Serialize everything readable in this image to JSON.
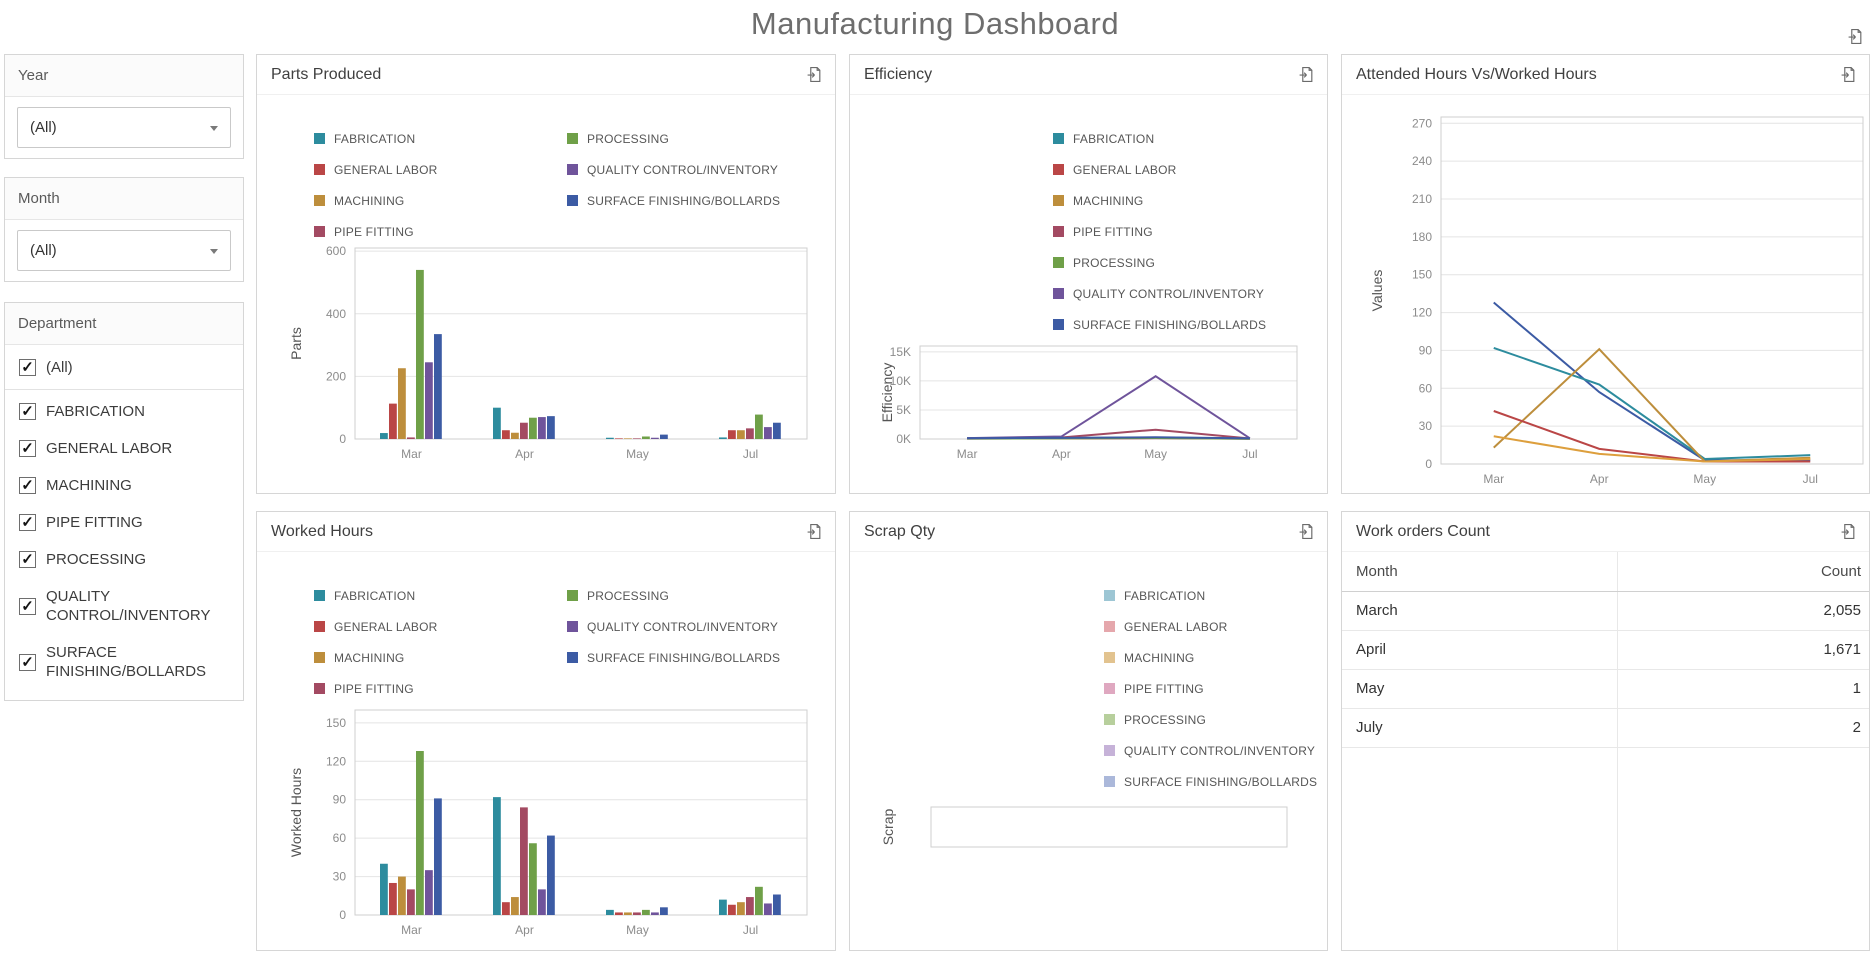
{
  "page": {
    "title": "Manufacturing Dashboard"
  },
  "icons": {
    "page_export": "export-icon",
    "dropdown_chevron": "chevron-down-icon",
    "checkbox_check": "checkmark-icon"
  },
  "glyphs": {
    "checkmark": "✓"
  },
  "filters": {
    "year_label": "Year",
    "year_value": "(All)",
    "month_label": "Month",
    "month_value": "(All)",
    "department_label": "Department",
    "departments": [
      {
        "label": "(All)",
        "checked": true
      },
      {
        "label": "FABRICATION",
        "checked": true
      },
      {
        "label": "GENERAL LABOR",
        "checked": true
      },
      {
        "label": "MACHINING",
        "checked": true
      },
      {
        "label": "PIPE FITTING",
        "checked": true
      },
      {
        "label": "PROCESSING",
        "checked": true
      },
      {
        "label": "QUALITY CONTROL/INVENTORY",
        "checked": true
      },
      {
        "label": "SURFACE FINISHING/BOLLARDS",
        "checked": true
      }
    ]
  },
  "cards": {
    "parts": "Parts Produced",
    "efficiency": "Efficiency",
    "attended": "Attended Hours Vs/Worked Hours",
    "worked": "Worked Hours",
    "scrap": "Scrap Qty",
    "workorders": "Work orders Count"
  },
  "chart_data": [
    {
      "id": "parts",
      "type": "bar",
      "title": "Parts Produced",
      "xlabel": "",
      "ylabel": "Parts",
      "ylim": [
        0,
        610
      ],
      "yticks": [
        {
          "v": 0,
          "label": "0"
        },
        {
          "v": 200,
          "label": "200"
        },
        {
          "v": 400,
          "label": "400"
        },
        {
          "v": 600,
          "label": "600"
        }
      ],
      "categories": [
        "Mar",
        "Apr",
        "May",
        "Jul"
      ],
      "legend_position": "top",
      "series": [
        {
          "name": "FABRICATION",
          "color": "#2D8C9E",
          "values": [
            19,
            100,
            4,
            5
          ]
        },
        {
          "name": "GENERAL LABOR",
          "color": "#BA4646",
          "values": [
            113,
            28,
            2,
            28
          ]
        },
        {
          "name": "MACHINING",
          "color": "#BD8E3C",
          "values": [
            226,
            20,
            2,
            28
          ]
        },
        {
          "name": "PIPE FITTING",
          "color": "#A34A62",
          "values": [
            5,
            52,
            2,
            34
          ]
        },
        {
          "name": "PROCESSING",
          "color": "#6FA048",
          "values": [
            540,
            68,
            8,
            78
          ]
        },
        {
          "name": "QUALITY CONTROL/INVENTORY",
          "color": "#6F549B",
          "values": [
            245,
            70,
            4,
            38
          ]
        },
        {
          "name": "SURFACE FINISHING/BOLLARDS",
          "color": "#3C5BA4",
          "values": [
            335,
            73,
            14,
            52
          ]
        }
      ]
    },
    {
      "id": "efficiency",
      "type": "line",
      "title": "Efficiency",
      "xlabel": "",
      "ylabel": "Efficiency",
      "ylim": [
        0,
        16000
      ],
      "yticks": [
        {
          "v": 0,
          "label": "0K"
        },
        {
          "v": 5000,
          "label": "5K"
        },
        {
          "v": 10000,
          "label": "10K"
        },
        {
          "v": 15000,
          "label": "15K"
        }
      ],
      "categories": [
        "Mar",
        "Apr",
        "May",
        "Jul"
      ],
      "legend_position": "top",
      "series": [
        {
          "name": "FABRICATION",
          "color": "#2D8C9E",
          "values": [
            120,
            180,
            250,
            80
          ]
        },
        {
          "name": "GENERAL LABOR",
          "color": "#BA4646",
          "values": [
            60,
            90,
            140,
            40
          ]
        },
        {
          "name": "MACHINING",
          "color": "#BD8E3C",
          "values": [
            90,
            130,
            200,
            60
          ]
        },
        {
          "name": "PIPE FITTING",
          "color": "#A34A62",
          "values": [
            110,
            260,
            1600,
            90
          ]
        },
        {
          "name": "PROCESSING",
          "color": "#6FA048",
          "values": [
            70,
            110,
            180,
            50
          ]
        },
        {
          "name": "QUALITY CONTROL/INVENTORY",
          "color": "#6F549B",
          "values": [
            160,
            420,
            10800,
            120
          ]
        },
        {
          "name": "SURFACE FINISHING/BOLLARDS",
          "color": "#3C5BA4",
          "values": [
            130,
            200,
            300,
            100
          ]
        }
      ]
    },
    {
      "id": "attended",
      "type": "line",
      "title": "Attended Hours Vs/Worked Hours",
      "xlabel": "",
      "ylabel": "Values",
      "ylim": [
        0,
        275
      ],
      "yticks": [
        {
          "v": 0,
          "label": "0"
        },
        {
          "v": 30,
          "label": "30"
        },
        {
          "v": 60,
          "label": "60"
        },
        {
          "v": 90,
          "label": "90"
        },
        {
          "v": 120,
          "label": "120"
        },
        {
          "v": 150,
          "label": "150"
        },
        {
          "v": 180,
          "label": "180"
        },
        {
          "v": 210,
          "label": "210"
        },
        {
          "v": 240,
          "label": "240"
        },
        {
          "v": 270,
          "label": "270"
        }
      ],
      "categories": [
        "Mar",
        "Apr",
        "May",
        "Jul"
      ],
      "legend_position": "none",
      "series": [
        {
          "name": "series-navy",
          "color": "#3C5BA4",
          "values": [
            128,
            57,
            3,
            3
          ]
        },
        {
          "name": "series-teal",
          "color": "#2D8C9E",
          "values": [
            92,
            63,
            4,
            7
          ]
        },
        {
          "name": "series-gold",
          "color": "#BD8E3C",
          "values": [
            13,
            91,
            2,
            5
          ]
        },
        {
          "name": "series-red",
          "color": "#BA4646",
          "values": [
            42,
            12,
            2,
            2
          ]
        },
        {
          "name": "series-orange",
          "color": "#DD9F3D",
          "values": [
            22,
            8,
            2,
            4
          ]
        }
      ]
    },
    {
      "id": "worked",
      "type": "bar",
      "title": "Worked Hours",
      "xlabel": "",
      "ylabel": "Worked Hours",
      "ylim": [
        0,
        160
      ],
      "yticks": [
        {
          "v": 0,
          "label": "0"
        },
        {
          "v": 30,
          "label": "30"
        },
        {
          "v": 60,
          "label": "60"
        },
        {
          "v": 90,
          "label": "90"
        },
        {
          "v": 120,
          "label": "120"
        },
        {
          "v": 150,
          "label": "150"
        }
      ],
      "categories": [
        "Mar",
        "Apr",
        "May",
        "Jul"
      ],
      "legend_position": "top",
      "series": [
        {
          "name": "FABRICATION",
          "color": "#2D8C9E",
          "values": [
            40,
            92,
            4,
            12
          ]
        },
        {
          "name": "GENERAL LABOR",
          "color": "#BA4646",
          "values": [
            25,
            10,
            2,
            8
          ]
        },
        {
          "name": "MACHINING",
          "color": "#BD8E3C",
          "values": [
            30,
            14,
            2,
            10
          ]
        },
        {
          "name": "PIPE FITTING",
          "color": "#A34A62",
          "values": [
            20,
            84,
            2,
            14
          ]
        },
        {
          "name": "PROCESSING",
          "color": "#6FA048",
          "values": [
            128,
            56,
            4,
            22
          ]
        },
        {
          "name": "QUALITY CONTROL/INVENTORY",
          "color": "#6F549B",
          "values": [
            35,
            20,
            2,
            9
          ]
        },
        {
          "name": "SURFACE FINISHING/BOLLARDS",
          "color": "#3C5BA4",
          "values": [
            91,
            62,
            6,
            16
          ]
        }
      ]
    },
    {
      "id": "scrap",
      "type": "bar",
      "title": "Scrap Qty",
      "xlabel": "",
      "ylabel": "Scrap",
      "yticks": [],
      "categories": [],
      "legend_position": "top",
      "series": [
        {
          "name": "FABRICATION",
          "color": "#9DC6D4",
          "values": []
        },
        {
          "name": "GENERAL LABOR",
          "color": "#E5A7AC",
          "values": []
        },
        {
          "name": "MACHINING",
          "color": "#E2C38F",
          "values": []
        },
        {
          "name": "PIPE FITTING",
          "color": "#DFA8C0",
          "values": []
        },
        {
          "name": "PROCESSING",
          "color": "#B7CF9C",
          "values": []
        },
        {
          "name": "QUALITY CONTROL/INVENTORY",
          "color": "#C6B2D8",
          "values": []
        },
        {
          "name": "SURFACE FINISHING/BOLLARDS",
          "color": "#ABB8DA",
          "values": []
        }
      ]
    }
  ],
  "work_orders": {
    "columns": [
      "Month",
      "Count"
    ],
    "rows": [
      [
        "March",
        "2,055"
      ],
      [
        "April",
        "1,671"
      ],
      [
        "May",
        "1"
      ],
      [
        "July",
        "2"
      ]
    ]
  }
}
